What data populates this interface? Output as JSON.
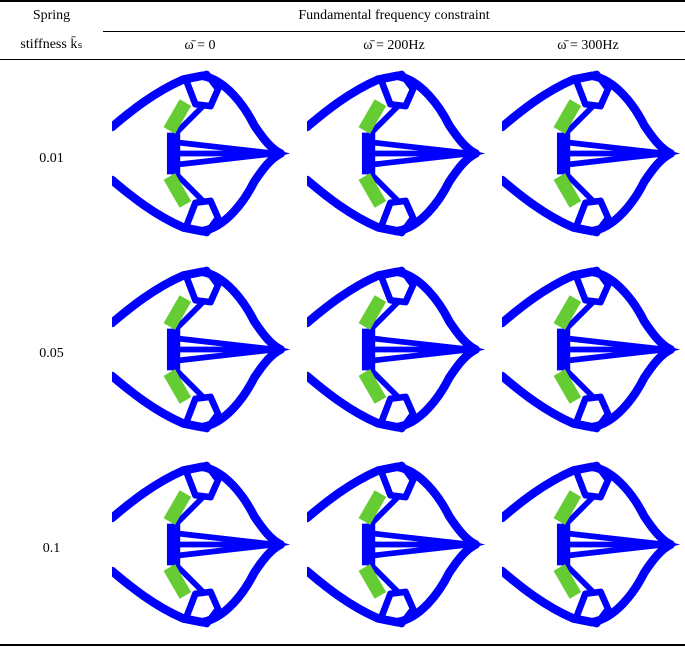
{
  "table": {
    "row_header": [
      "Spring",
      "stiffness k̄ₛ"
    ],
    "group_header": "Fundamental frequency constraint",
    "columns": [
      "ω̄ = 0",
      "ω̄ = 200Hz",
      "ω̄ = 300Hz"
    ],
    "rows": [
      "0.01",
      "0.05",
      "0.1"
    ]
  }
}
